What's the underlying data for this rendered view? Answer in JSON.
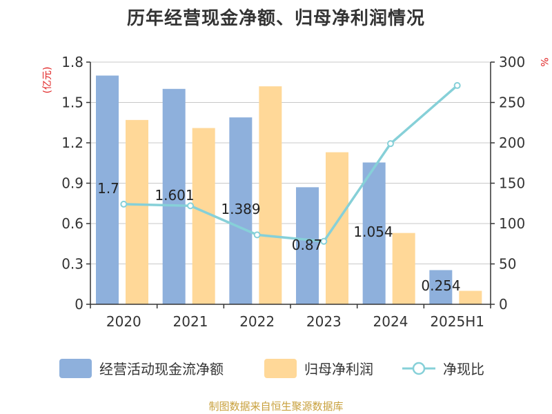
{
  "colors": {
    "operating_cash": "#8eb0dc",
    "net_profit": "#ffd898",
    "ratio_line": "#86d0d8",
    "unit_text": "#e02020",
    "source_text": "#c8a03c"
  },
  "chart_data": {
    "type": "bar",
    "title": "历年经营现金净额、归母净利润情况",
    "categories": [
      "2020",
      "2021",
      "2022",
      "2023",
      "2024",
      "2025H1"
    ],
    "left_axis": {
      "unit": "(亿元)",
      "ylim": [
        0,
        1.8
      ],
      "ticks": [
        "0",
        "0.3",
        "0.6",
        "0.9",
        "1.2",
        "1.5",
        "1.8"
      ]
    },
    "right_axis": {
      "unit": "%",
      "ylim": [
        0,
        300
      ],
      "ticks": [
        "0",
        "50",
        "100",
        "150",
        "200",
        "250",
        "300"
      ]
    },
    "series": [
      {
        "name": "经营活动现金流净额",
        "type": "bar",
        "axis": "left",
        "values": [
          1.7,
          1.601,
          1.389,
          0.87,
          1.054,
          0.254
        ],
        "labels": [
          "1.7",
          "1.601",
          "1.389",
          "0.87",
          "1.054",
          "0.254"
        ]
      },
      {
        "name": "归母净利润",
        "type": "bar",
        "axis": "left",
        "values": [
          1.37,
          1.31,
          1.62,
          1.13,
          0.53,
          0.1
        ]
      },
      {
        "name": "净现比",
        "type": "line",
        "axis": "right",
        "values": [
          124,
          122,
          86,
          78,
          199,
          271
        ]
      }
    ],
    "grid": true,
    "legend_position": "bottom"
  },
  "source": "制图数据来自恒生聚源数据库"
}
